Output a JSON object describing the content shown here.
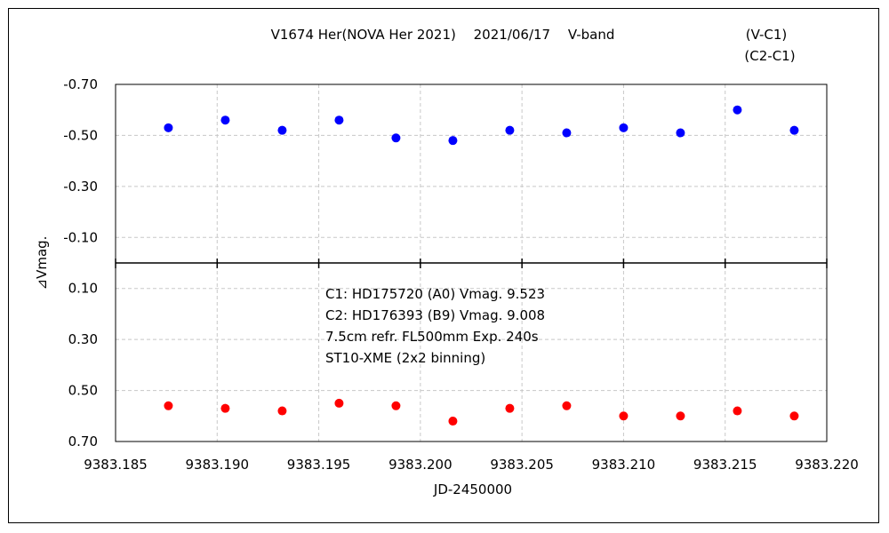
{
  "chart_data": {
    "type": "scatter",
    "title": "V1674 Her(NOVA Her 2021)　 2021/06/17　 V-band",
    "xlabel": "JD-2450000",
    "ylabel": "⊿Vmag.",
    "xlim": [
      9383.185,
      9383.22
    ],
    "ylim": [
      -0.7,
      0.7
    ],
    "y_inverted": true,
    "grid": true,
    "legend_position": "top-right",
    "x_tick_labels": [
      "9383.185",
      "9383.190",
      "9383.195",
      "9383.200",
      "9383.205",
      "9383.210",
      "9383.215",
      "9383.220"
    ],
    "x_ticks": [
      9383.185,
      9383.19,
      9383.195,
      9383.2,
      9383.205,
      9383.21,
      9383.215,
      9383.22
    ],
    "y_tick_labels": [
      "-0.70",
      "-0.50",
      "-0.30",
      "-0.10",
      "0.10",
      "0.30",
      "0.50",
      "0.70"
    ],
    "y_ticks": [
      -0.7,
      -0.5,
      -0.3,
      -0.1,
      0.1,
      0.3,
      0.5,
      0.7
    ],
    "annotations": [
      "C1: HD175720 (A0) Vmag. 9.523",
      "C2: HD176393 (B9) Vmag. 9.008",
      "7.5cm refr. FL500mm  Exp. 240s",
      "ST10-XME (2x2 binning)"
    ],
    "series": [
      {
        "name": "(V-C1)",
        "color": "#ff0000",
        "x": [
          9383.1876,
          9383.1904,
          9383.1932,
          9383.196,
          9383.1988,
          9383.2016,
          9383.2044,
          9383.2072,
          9383.21,
          9383.2128,
          9383.2156,
          9383.2184
        ],
        "y": [
          0.56,
          0.57,
          0.58,
          0.55,
          0.56,
          0.62,
          0.57,
          0.56,
          0.6,
          0.6,
          0.58,
          0.6
        ]
      },
      {
        "name": "(C2-C1)",
        "color": "#0000ff",
        "x": [
          9383.1876,
          9383.1904,
          9383.1932,
          9383.196,
          9383.1988,
          9383.2016,
          9383.2044,
          9383.2072,
          9383.21,
          9383.2128,
          9383.2156,
          9383.2184
        ],
        "y": [
          -0.53,
          -0.56,
          -0.52,
          -0.56,
          -0.49,
          -0.48,
          -0.52,
          -0.51,
          -0.53,
          -0.51,
          -0.6,
          -0.52
        ]
      }
    ]
  }
}
